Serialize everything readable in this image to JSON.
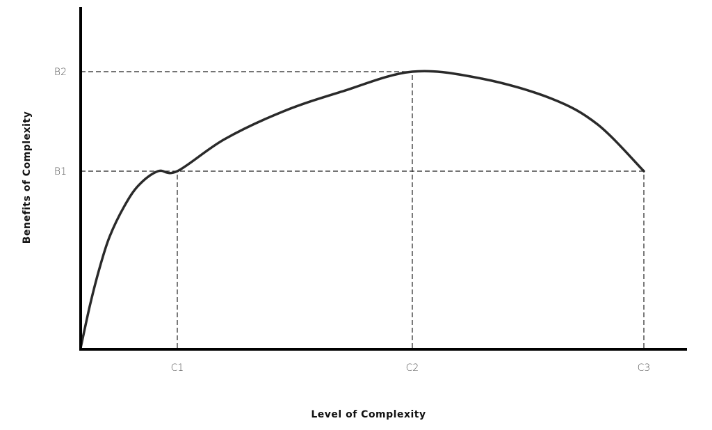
{
  "chart_data": {
    "type": "line",
    "title": "",
    "xlabel": "Level of Complexity",
    "ylabel": "Benefits of Complexity",
    "x_ticks": [
      {
        "label": "C1",
        "value": 1
      },
      {
        "label": "C2",
        "value": 2
      },
      {
        "label": "C3",
        "value": 3
      }
    ],
    "y_ticks": [
      {
        "label": "B1",
        "value": 1
      },
      {
        "label": "B2",
        "value": 2
      }
    ],
    "xlim": [
      0,
      3.55
    ],
    "ylim": [
      0,
      2.5
    ],
    "series": [
      {
        "x": [
          0,
          0.1,
          0.2,
          0.3,
          0.45,
          0.6,
          0.8,
          1.0,
          1.2,
          1.45,
          1.7,
          2.0,
          2.3,
          2.6,
          2.8,
          3.0
        ],
        "y": [
          0,
          0.25,
          0.46,
          0.63,
          0.8,
          0.92,
          1.0,
          1.0,
          1.32,
          1.6,
          1.8,
          2.0,
          1.93,
          1.73,
          1.47,
          1.0
        ]
      }
    ],
    "guides": [
      {
        "from": [
          0,
          2
        ],
        "to": [
          2,
          2
        ]
      },
      {
        "from": [
          0,
          1
        ],
        "to": [
          3,
          1
        ]
      },
      {
        "from": [
          1,
          0
        ],
        "to": [
          1,
          1
        ]
      },
      {
        "from": [
          2,
          0
        ],
        "to": [
          2,
          2
        ]
      },
      {
        "from": [
          3,
          0
        ],
        "to": [
          3,
          1
        ]
      }
    ],
    "grid": false,
    "legend": "none"
  }
}
